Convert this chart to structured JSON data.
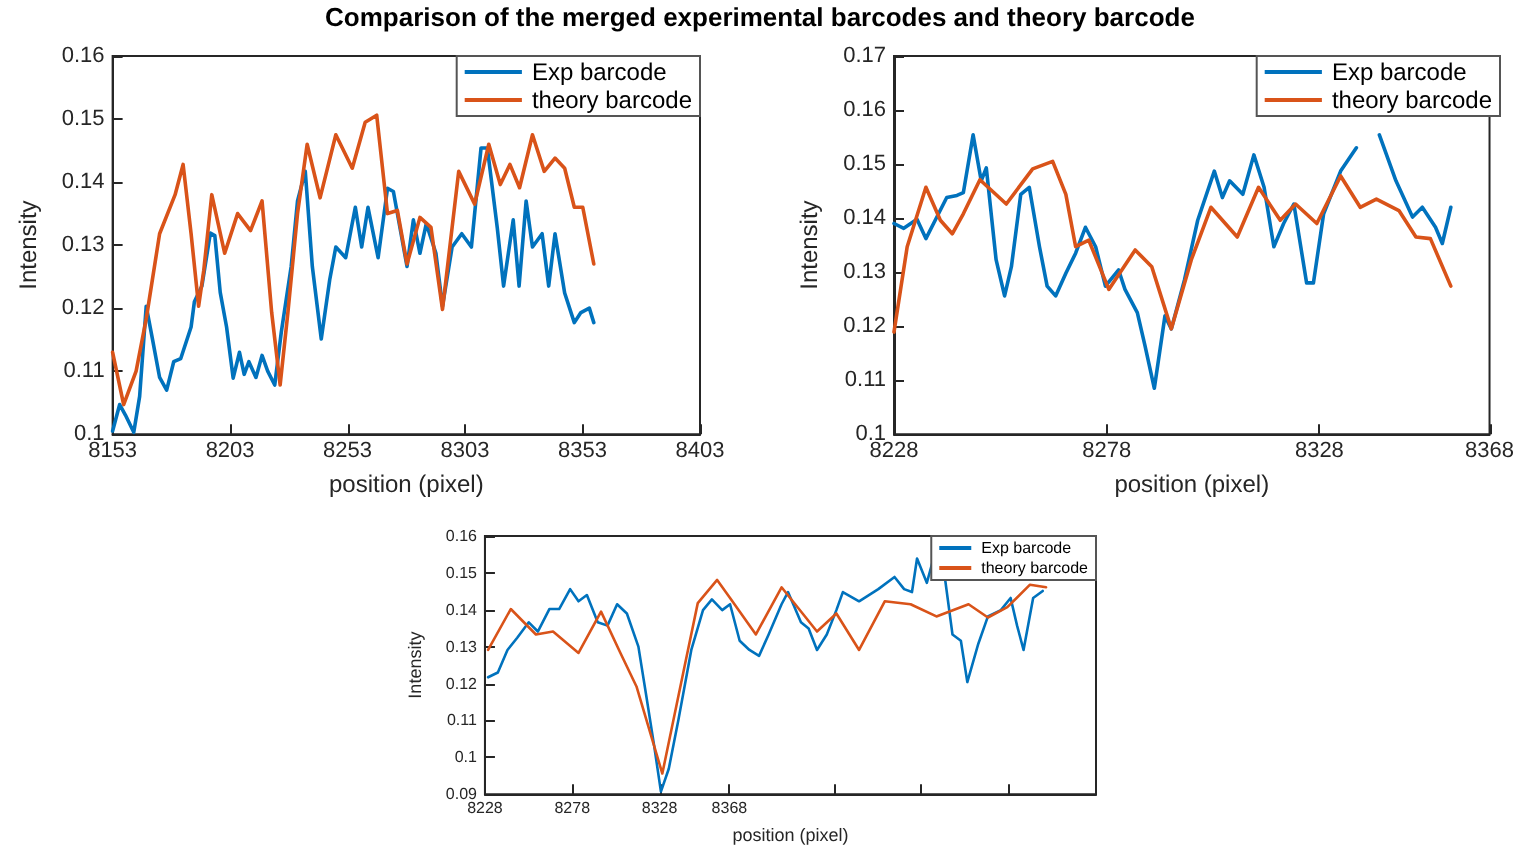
{
  "chart_data": [
    {
      "type": "line",
      "title": "Comparison of the merged experimental barcodes and theory barcode",
      "xlabel": "position (pixel)",
      "ylabel": "Intensity",
      "legend": "top right",
      "marker": "none",
      "xlim": [
        8153,
        8403
      ],
      "xticks": [
        8153,
        8203,
        8253,
        8303,
        8353,
        8403
      ],
      "ylim": [
        0.1,
        0.16
      ],
      "yticks": [
        0.1,
        0.11,
        0.12,
        0.13,
        0.14,
        0.15,
        0.16
      ],
      "series": [
        {
          "name": "Exp barcode",
          "color": "#0072bd",
          "x": [
            8153,
            8156,
            8158.5,
            8162,
            8164.5,
            8167.3,
            8170,
            8173,
            8176,
            8179,
            8182,
            8186.4,
            8187.8,
            8191,
            8194.6,
            8196.5,
            8198.8,
            8201.5,
            8204.3,
            8207,
            8209,
            8211,
            8214,
            8216.6,
            8219,
            8222,
            8224.8,
            8229,
            8231.7,
            8235,
            8238,
            8241.8,
            8245.4,
            8248,
            8252.2,
            8256.3,
            8259,
            8261.7,
            8266,
            8270,
            8272.5,
            8274.7,
            8278.3,
            8281,
            8283.8,
            8286.5,
            8290.6,
            8293.4,
            8297.5,
            8301.6,
            8305.7,
            8309.8,
            8312.5,
            8316.7,
            8319.4,
            8323.5,
            8326,
            8329,
            8331.7,
            8335.8,
            8338.6,
            8341.3,
            8345.4,
            8349.5,
            8352.3,
            8355.9,
            8357.8
          ],
          "values": [
            0.1005,
            0.1047,
            0.103,
            0.1003,
            0.106,
            0.1203,
            0.115,
            0.109,
            0.107,
            0.1115,
            0.112,
            0.117,
            0.121,
            0.1235,
            0.1319,
            0.1315,
            0.1225,
            0.117,
            0.1089,
            0.113,
            0.1095,
            0.1115,
            0.109,
            0.1125,
            0.11,
            0.1078,
            0.1162,
            0.1266,
            0.137,
            0.1417,
            0.1266,
            0.1151,
            0.1245,
            0.1297,
            0.128,
            0.136,
            0.1297,
            0.136,
            0.128,
            0.139,
            0.1385,
            0.134,
            0.1266,
            0.134,
            0.1287,
            0.1334,
            0.1287,
            0.1203,
            0.1297,
            0.1318,
            0.1297,
            0.1454,
            0.1454,
            0.1328,
            0.1235,
            0.134,
            0.1235,
            0.137,
            0.1297,
            0.1318,
            0.1235,
            0.1318,
            0.1224,
            0.1177,
            0.1193,
            0.12,
            0.1177
          ]
        },
        {
          "name": "theory barcode",
          "color": "#d95319",
          "x": [
            8153,
            8157.7,
            8163,
            8167.3,
            8173,
            8179.6,
            8183,
            8186.4,
            8189.6,
            8191.8,
            8195.2,
            8200.7,
            8206.2,
            8211.7,
            8216.6,
            8220.7,
            8224.3,
            8227.6,
            8231.7,
            8235.8,
            8241.3,
            8248,
            8255,
            8260.5,
            8265.4,
            8270,
            8274.2,
            8278.3,
            8283.8,
            8288.5,
            8293.4,
            8300.3,
            8307.1,
            8313.1,
            8318,
            8322.1,
            8326.2,
            8331.7,
            8336.7,
            8341.3,
            8345.4,
            8349.5,
            8353.1,
            8357.8
          ],
          "values": [
            0.113,
            0.1047,
            0.11,
            0.1183,
            0.1318,
            0.138,
            0.1428,
            0.1318,
            0.1203,
            0.126,
            0.138,
            0.1287,
            0.135,
            0.1323,
            0.137,
            0.1193,
            0.1078,
            0.1193,
            0.135,
            0.146,
            0.1375,
            0.1475,
            0.1422,
            0.1495,
            0.1506,
            0.135,
            0.1355,
            0.127,
            0.1344,
            0.1328,
            0.1198,
            0.1417,
            0.1365,
            0.146,
            0.1396,
            0.1428,
            0.1391,
            0.1475,
            0.1417,
            0.1438,
            0.1422,
            0.136,
            0.136,
            0.127
          ]
        }
      ]
    },
    {
      "type": "line",
      "xlabel": "position (pixel)",
      "ylabel": "Intensity",
      "legend": "top right",
      "marker": "none",
      "xlim": [
        8228,
        8368
      ],
      "xticks": [
        8228,
        8278,
        8328,
        8368
      ],
      "ylim": [
        0.1,
        0.17
      ],
      "yticks": [
        0.1,
        0.11,
        0.12,
        0.13,
        0.14,
        0.15,
        0.16,
        0.17
      ],
      "series": [
        {
          "name": "Exp barcode",
          "color": "#0072bd",
          "x": [
            8228,
            8230.3,
            8233.4,
            8235.5,
            8237.3,
            8240.4,
            8242.8,
            8244.3,
            8246.6,
            8248.5,
            8249.7,
            8252,
            8254,
            8255.6,
            8257.8,
            8259.8,
            8262.2,
            8264,
            8266,
            8268.4,
            8270.7,
            8273,
            8275.4,
            8277.7,
            8280.8,
            8282.3,
            8285.2,
            8287,
            8289.2,
            8291.7,
            8293.2,
            8296.3,
            8299.4,
            8303.3,
            8305.2,
            8306.9,
            8310,
            8312.6,
            8315,
            8317.3,
            8319.6,
            8322,
            8325,
            8326.6,
            8329,
            8333,
            8336.7,
            8339.5,
            8342.1,
            8346,
            8349.9,
            8352.2,
            8355.3,
            8356.9,
            8358.9
          ],
          "values": [
            0.139,
            0.1381,
            0.1398,
            0.1362,
            0.139,
            0.1438,
            0.1442,
            0.1447,
            0.1554,
            0.1469,
            0.1493,
            0.1323,
            0.1256,
            0.131,
            0.1444,
            0.1457,
            0.1347,
            0.1274,
            0.1256,
            0.1298,
            0.1335,
            0.1383,
            0.1347,
            0.1274,
            0.1304,
            0.1268,
            0.1225,
            0.1164,
            0.1085,
            0.1219,
            0.1195,
            0.1286,
            0.1396,
            0.1487,
            0.1438,
            0.1469,
            0.1444,
            0.1517,
            0.1457,
            0.1347,
            0.139,
            0.1426,
            0.128,
            0.128,
            0.1408,
            0.1487,
            0.153,
            null,
            0.1554,
            0.1469,
            0.1402,
            0.142,
            0.1383,
            0.1353,
            0.142
          ]
        },
        {
          "name": "theory barcode",
          "color": "#d95319",
          "x": [
            8228,
            8231.1,
            8235.5,
            8238.9,
            8241.7,
            8244.3,
            8248.2,
            8254.4,
            8260.6,
            8265.3,
            8268.4,
            8270.7,
            8273.8,
            8278.5,
            8284.7,
            8288.6,
            8293.2,
            8297.9,
            8302.5,
            8308.7,
            8313.7,
            8318.8,
            8322.4,
            8327.4,
            8333,
            8337.6,
            8341.4,
            8346.7,
            8350.7,
            8354.1,
            8358.9
          ],
          "values": [
            0.1189,
            0.1347,
            0.1457,
            0.1396,
            0.1371,
            0.1408,
            0.1471,
            0.1426,
            0.1491,
            0.1505,
            0.1444,
            0.1347,
            0.1359,
            0.1268,
            0.1341,
            0.131,
            0.1195,
            0.1323,
            0.142,
            0.1365,
            0.1457,
            0.1396,
            0.1426,
            0.139,
            0.1478,
            0.142,
            0.1435,
            0.1414,
            0.1365,
            0.1362,
            0.1274
          ]
        }
      ]
    },
    {
      "type": "line",
      "xlabel": "position (pixel)",
      "ylabel": "Intensity",
      "legend": "top right",
      "marker": "none",
      "xlim": [
        8228,
        8578
      ],
      "xticks": [
        8228,
        8278,
        8328,
        8368,
        {
          "value": 8428,
          "label": null
        },
        {
          "value": 8478,
          "label": null
        },
        {
          "value": 8528,
          "label": null
        }
      ],
      "ylim": [
        0.09,
        0.16
      ],
      "yticks": [
        0.09,
        0.1,
        0.11,
        0.12,
        0.13,
        0.14,
        0.15,
        0.16
      ],
      "series": [
        {
          "name": "Exp barcode",
          "color": "#0072bd",
          "x": [
            8229.8,
            8235.4,
            8240.9,
            8246.5,
            8253.1,
            8258.3,
            8264.9,
            8270.5,
            8276.8,
            8281.6,
            8286.4,
            8292.6,
            8298.2,
            8303.7,
            8309.3,
            8315.9,
            8320.4,
            8324.8,
            8328.8,
            8333.3,
            8338.8,
            8346.2,
            8352.9,
            8358,
            8363.9,
            8368.4,
            8373.9,
            8379.5,
            8385,
            8390.5,
            8397.9,
            8401.6,
            8409,
            8413.4,
            8418.2,
            8423.8,
            8429.3,
            8433,
            8442.3,
            8453.3,
            8462.6,
            8468.1,
            8472.6,
            8475.5,
            8481.1,
            8485.9,
            8489.5,
            8495.8,
            8500.6,
            8504.3,
            8510.6,
            8516.1,
            8523.5,
            8529.1,
            8532.8,
            8536.5,
            8542,
            8547.5
          ],
          "values": [
            0.1217,
            0.123,
            0.1291,
            0.1324,
            0.1366,
            0.1341,
            0.1402,
            0.1402,
            0.1456,
            0.1423,
            0.144,
            0.1366,
            0.1357,
            0.1415,
            0.139,
            0.13,
            0.1167,
            0.1035,
            0.0907,
            0.0969,
            0.1101,
            0.1291,
            0.1399,
            0.1428,
            0.1399,
            0.1415,
            0.1316,
            0.1291,
            0.1275,
            0.1333,
            0.1415,
            0.1448,
            0.1366,
            0.1349,
            0.1291,
            0.1333,
            0.1399,
            0.1448,
            0.1423,
            0.1456,
            0.1489,
            0.1456,
            0.1448,
            0.1539,
            0.1473,
            0.1556,
            0.1556,
            0.1333,
            0.1316,
            0.1204,
            0.1308,
            0.1382,
            0.1399,
            0.1432,
            0.1357,
            0.1291,
            0.1432,
            0.1451
          ]
        },
        {
          "name": "theory barcode",
          "color": "#d95319",
          "x": [
            8229.8,
            8242.8,
            8257.2,
            8267,
            8281.6,
            8294.5,
            8305.6,
            8314.8,
            8329.6,
            8342.5,
            8349.9,
            8361,
            8368.4,
            8383.2,
            8397.9,
            8418.2,
            8429.3,
            8442.3,
            8457,
            8471.8,
            8486.6,
            8505,
            8516.1,
            8527.2,
            8540.2,
            8549.4
          ],
          "values": [
            0.1291,
            0.1402,
            0.1333,
            0.1341,
            0.1283,
            0.1395,
            0.1283,
            0.1192,
            0.0956,
            0.125,
            0.1418,
            0.1481,
            0.1432,
            0.1333,
            0.1461,
            0.1341,
            0.139,
            0.1291,
            0.1423,
            0.1415,
            0.1382,
            0.1415,
            0.1379,
            0.1407,
            0.1468,
            0.1461
          ]
        }
      ]
    }
  ]
}
